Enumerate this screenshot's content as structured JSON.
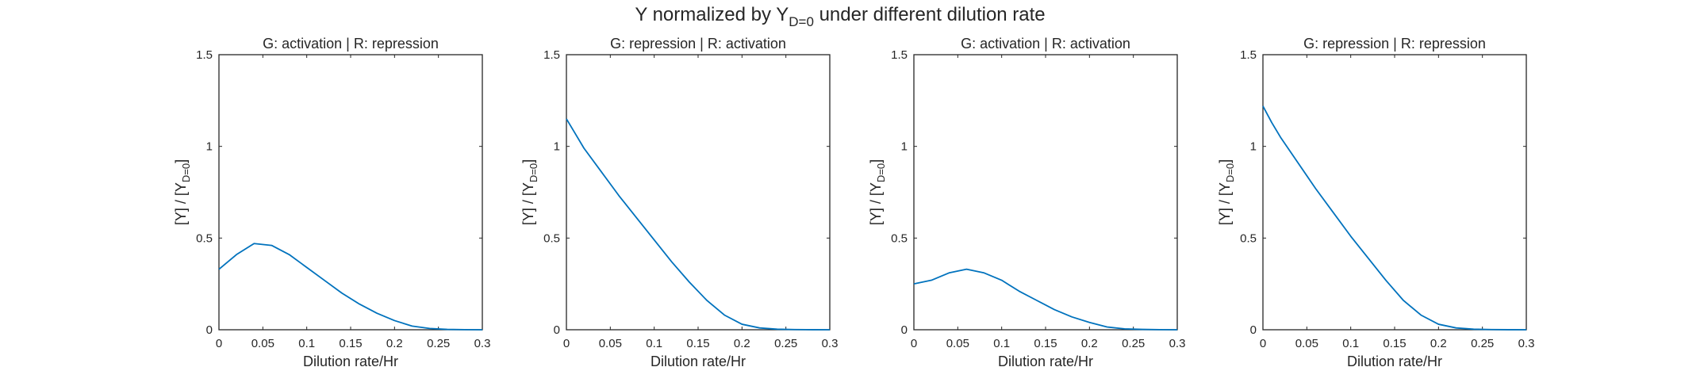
{
  "figure": {
    "suptitle_main": "Y normalized by Y",
    "suptitle_sub": "D=0",
    "suptitle_rest": " under different dilution rate"
  },
  "chart_data": [
    {
      "type": "line",
      "title": "G: activation | R: repression",
      "xlabel": "Dilution rate/Hr",
      "ylabel_main": "[Y] / [Y",
      "ylabel_sub": "D=0",
      "ylabel_end": "]",
      "xlim": [
        0,
        0.3
      ],
      "ylim": [
        0,
        1.5
      ],
      "xticks": [
        "0",
        "0.05",
        "0.1",
        "0.15",
        "0.2",
        "0.25",
        "0.3"
      ],
      "yticks": [
        "0",
        "0.5",
        "1",
        "1.5"
      ],
      "grid": false,
      "line_color": "#0072BD",
      "x": [
        0,
        0.02,
        0.04,
        0.06,
        0.08,
        0.1,
        0.12,
        0.14,
        0.16,
        0.18,
        0.2,
        0.22,
        0.24,
        0.26,
        0.28,
        0.3
      ],
      "y": [
        0.33,
        0.41,
        0.47,
        0.46,
        0.41,
        0.34,
        0.27,
        0.2,
        0.14,
        0.09,
        0.05,
        0.02,
        0.007,
        0.002,
        0.0005,
        0.0
      ]
    },
    {
      "type": "line",
      "title": "G: repression | R: activation",
      "xlabel": "Dilution rate/Hr",
      "ylabel_main": "[Y] / [Y",
      "ylabel_sub": "D=0",
      "ylabel_end": "]",
      "xlim": [
        0,
        0.3
      ],
      "ylim": [
        0,
        1.5
      ],
      "xticks": [
        "0",
        "0.05",
        "0.1",
        "0.15",
        "0.2",
        "0.25",
        "0.3"
      ],
      "yticks": [
        "0",
        "0.5",
        "1",
        "1.5"
      ],
      "grid": false,
      "line_color": "#0072BD",
      "x": [
        0,
        0.01,
        0.02,
        0.04,
        0.06,
        0.08,
        0.1,
        0.12,
        0.14,
        0.16,
        0.18,
        0.2,
        0.22,
        0.24,
        0.26,
        0.28,
        0.3
      ],
      "y": [
        1.15,
        1.07,
        0.99,
        0.86,
        0.73,
        0.61,
        0.49,
        0.37,
        0.26,
        0.16,
        0.08,
        0.03,
        0.01,
        0.003,
        0.001,
        0.0003,
        0.0
      ]
    },
    {
      "type": "line",
      "title": "G: activation | R: activation",
      "xlabel": "Dilution rate/Hr",
      "ylabel_main": "[Y] / [Y",
      "ylabel_sub": "D=0",
      "ylabel_end": "]",
      "xlim": [
        0,
        0.3
      ],
      "ylim": [
        0,
        1.5
      ],
      "xticks": [
        "0",
        "0.05",
        "0.1",
        "0.15",
        "0.2",
        "0.25",
        "0.3"
      ],
      "yticks": [
        "0",
        "0.5",
        "1",
        "1.5"
      ],
      "grid": false,
      "line_color": "#0072BD",
      "x": [
        0,
        0.02,
        0.04,
        0.06,
        0.08,
        0.1,
        0.12,
        0.14,
        0.16,
        0.18,
        0.2,
        0.22,
        0.24,
        0.26,
        0.28,
        0.3
      ],
      "y": [
        0.25,
        0.27,
        0.31,
        0.33,
        0.31,
        0.27,
        0.21,
        0.16,
        0.11,
        0.07,
        0.04,
        0.015,
        0.005,
        0.002,
        0.0005,
        0.0
      ]
    },
    {
      "type": "line",
      "title": "G: repression | R: repression",
      "xlabel": "Dilution rate/Hr",
      "ylabel_main": "[Y] / [Y",
      "ylabel_sub": "D=0",
      "ylabel_end": "]",
      "xlim": [
        0,
        0.3
      ],
      "ylim": [
        0,
        1.5
      ],
      "xticks": [
        "0",
        "0.05",
        "0.1",
        "0.15",
        "0.2",
        "0.25",
        "0.3"
      ],
      "yticks": [
        "0",
        "0.5",
        "1",
        "1.5"
      ],
      "grid": false,
      "line_color": "#0072BD",
      "x": [
        0,
        0.01,
        0.02,
        0.04,
        0.06,
        0.08,
        0.1,
        0.12,
        0.14,
        0.16,
        0.18,
        0.2,
        0.22,
        0.24,
        0.26,
        0.28,
        0.3
      ],
      "y": [
        1.22,
        1.13,
        1.05,
        0.91,
        0.77,
        0.64,
        0.51,
        0.39,
        0.27,
        0.16,
        0.08,
        0.03,
        0.01,
        0.003,
        0.001,
        0.0003,
        0.0
      ]
    }
  ]
}
